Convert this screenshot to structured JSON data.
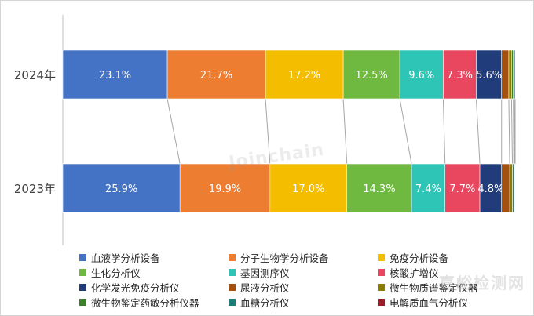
{
  "chart_data": {
    "type": "bar",
    "orientation": "horizontal",
    "stacked": true,
    "percent": true,
    "categories": [
      "2024年",
      "2023年"
    ],
    "series": [
      {
        "name": "血液学分析设备",
        "values": [
          23.1,
          25.9
        ],
        "labels": [
          "23.1%",
          "25.9%"
        ],
        "color": "#4472c4"
      },
      {
        "name": "分子生物学分析设备",
        "values": [
          21.7,
          19.9
        ],
        "labels": [
          "21.7%",
          "19.9%"
        ],
        "color": "#ed7d31"
      },
      {
        "name": "免疫分析设备",
        "values": [
          17.2,
          17.0
        ],
        "labels": [
          "17.2%",
          "17.0%"
        ],
        "color": "#f5bd00"
      },
      {
        "name": "生化分析仪",
        "values": [
          12.5,
          14.3
        ],
        "labels": [
          "12.5%",
          "14.3%"
        ],
        "color": "#70b941"
      },
      {
        "name": "基因测序仪",
        "values": [
          9.6,
          7.4
        ],
        "labels": [
          "9.6%",
          "7.4%"
        ],
        "color": "#2ec4b6"
      },
      {
        "name": "核酸扩增仪",
        "values": [
          7.3,
          7.7
        ],
        "labels": [
          "7.3%",
          "7.7%"
        ],
        "color": "#e8475f"
      },
      {
        "name": "化学发光免疫分析仪",
        "values": [
          5.6,
          4.8
        ],
        "labels": [
          "5.6%",
          "4.8%"
        ],
        "color": "#203c7a"
      },
      {
        "name": "尿液分析仪",
        "values": [
          1.6,
          1.8
        ],
        "labels": [
          "",
          ""
        ],
        "color": "#a4500f"
      },
      {
        "name": "微生物质谱鉴定仪器",
        "values": [
          0.6,
          0.6
        ],
        "labels": [
          "",
          ""
        ],
        "color": "#8b7d00"
      },
      {
        "name": "微生物鉴定药敏分析仪器",
        "values": [
          0.4,
          0.3
        ],
        "labels": [
          "",
          ""
        ],
        "color": "#3d7e2a"
      },
      {
        "name": "血糖分析仪",
        "values": [
          0.2,
          0.2
        ],
        "labels": [
          "",
          ""
        ],
        "color": "#1a7f79"
      },
      {
        "name": "电解质血气分析仪",
        "values": [
          0.2,
          0.1
        ],
        "labels": [
          "",
          ""
        ],
        "color": "#9e1c27"
      }
    ],
    "legend_position": "bottom",
    "grid": false,
    "series_lines": true
  },
  "watermark": "Joinchain",
  "corner_mark": "嘉峪检测网"
}
